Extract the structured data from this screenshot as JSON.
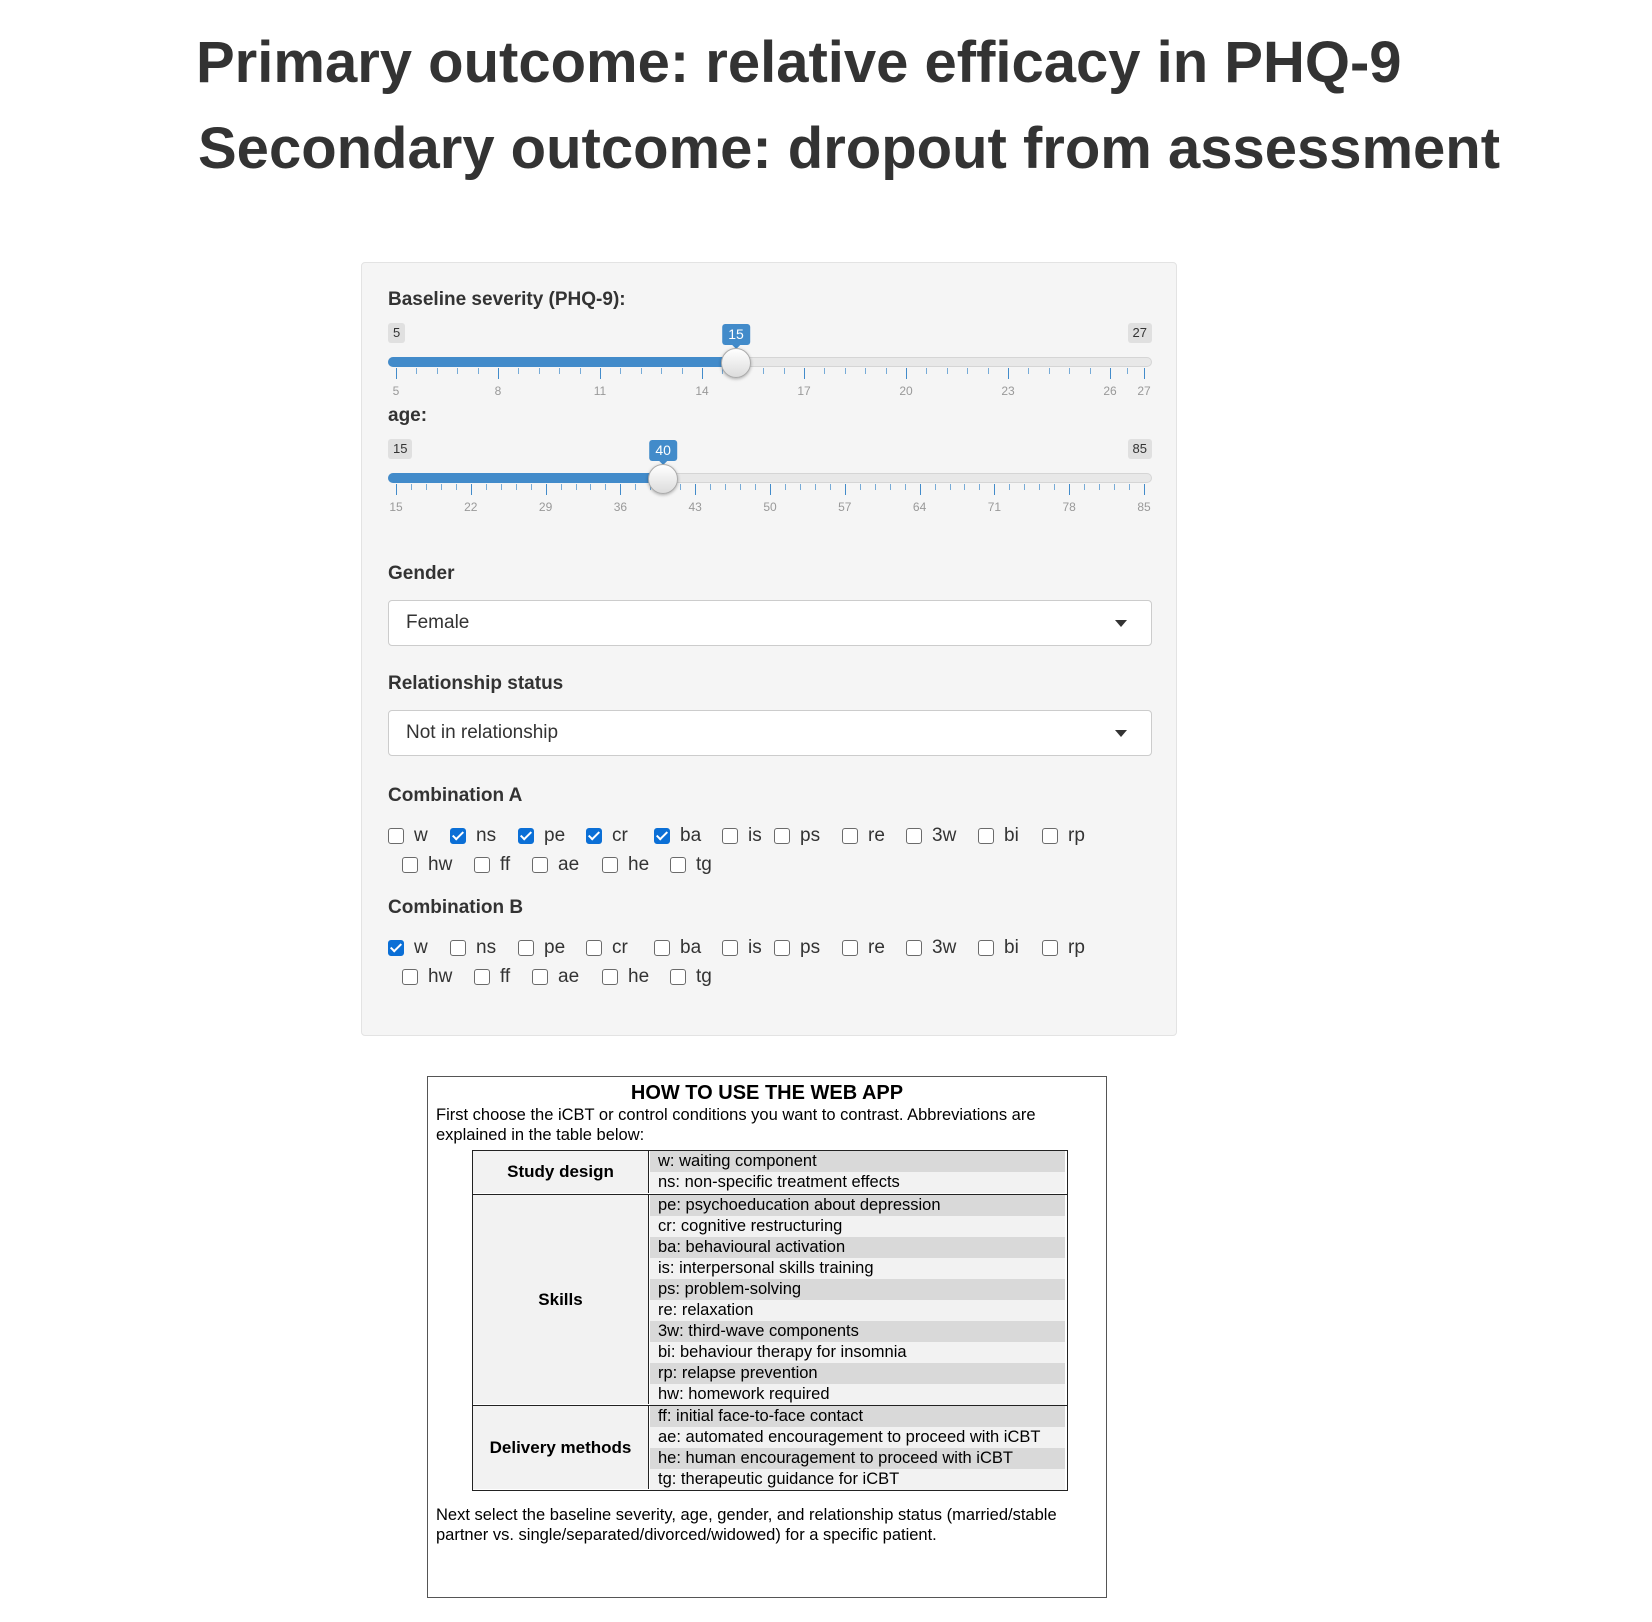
{
  "header": {
    "title_primary": "Primary outcome: relative efficacy in PHQ-9",
    "title_secondary": "Secondary outcome: dropout from assessment"
  },
  "inputs": {
    "severity": {
      "label": "Baseline severity (PHQ-9):",
      "min": 5,
      "max": 27,
      "value": 15,
      "ticks": [
        5,
        8,
        11,
        14,
        17,
        20,
        23,
        26,
        27
      ]
    },
    "age": {
      "label": "age:",
      "min": 15,
      "max": 85,
      "value": 40,
      "ticks": [
        15,
        22,
        29,
        36,
        43,
        50,
        57,
        64,
        71,
        78,
        85
      ]
    },
    "gender": {
      "label": "Gender",
      "selected": "Female"
    },
    "relationship": {
      "label": "Relationship status",
      "selected": "Not in relationship"
    },
    "combination_a": {
      "label": "Combination A",
      "options": [
        "w",
        "ns",
        "pe",
        "cr",
        "ba",
        "is",
        "ps",
        "re",
        "3w",
        "bi",
        "rp",
        "hw",
        "ff",
        "ae",
        "he",
        "tg"
      ],
      "checked": [
        "ns",
        "pe",
        "cr",
        "ba"
      ]
    },
    "combination_b": {
      "label": "Combination B",
      "options": [
        "w",
        "ns",
        "pe",
        "cr",
        "ba",
        "is",
        "ps",
        "re",
        "3w",
        "bi",
        "rp",
        "hw",
        "ff",
        "ae",
        "he",
        "tg"
      ],
      "checked": [
        "w"
      ]
    }
  },
  "colors": {
    "accent": "#428bca",
    "checkbox": "#0b6fd6",
    "panel_bg": "#f5f5f5"
  },
  "info": {
    "title": "HOW TO USE THE WEB APP",
    "intro": "First choose the iCBT or control conditions you want to contrast. Abbreviations are explained in the table below:",
    "groups": [
      {
        "name": "Study design",
        "items": [
          "w: waiting component",
          "ns: non-specific treatment effects"
        ]
      },
      {
        "name": "Skills",
        "items": [
          "pe: psychoeducation about depression",
          "cr: cognitive restructuring",
          "ba: behavioural activation",
          "is: interpersonal skills training",
          "ps: problem-solving",
          "re: relaxation",
          "3w: third-wave components",
          "bi: behaviour therapy for insomnia",
          "rp: relapse prevention",
          "hw: homework required"
        ]
      },
      {
        "name": "Delivery methods",
        "items": [
          "ff: initial face-to-face contact",
          "ae: automated encouragement to proceed with iCBT",
          "he: human encouragement to proceed with iCBT",
          "tg: therapeutic guidance for iCBT"
        ]
      }
    ],
    "outro": "Next select the baseline severity, age, gender, and relationship status (married/stable partner vs. single/separated/divorced/widowed) for a specific patient."
  }
}
